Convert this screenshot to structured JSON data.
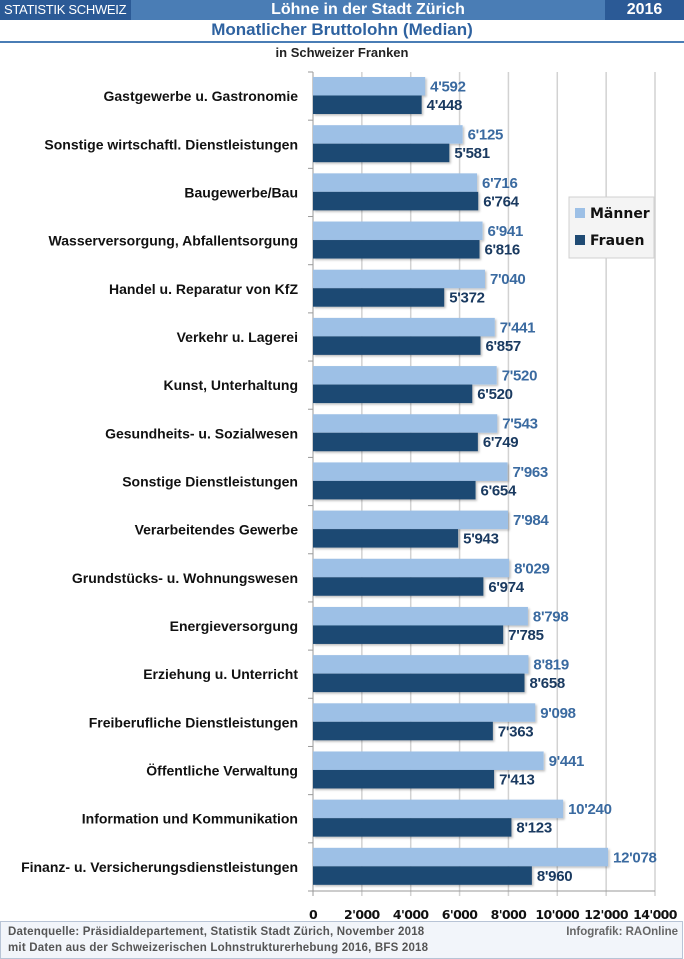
{
  "header": {
    "brand": "STATISTIK SCHWEIZ",
    "title": "Löhne in der Stadt Zürich",
    "year": "2016"
  },
  "colors": {
    "header_bg": "#4a7db5",
    "header_dark": "#2b5a96",
    "maenner": "#9dc0e6",
    "frauen": "#1f4a73",
    "maenner_label": "#3a6aa0",
    "frauen_label": "#1a3a60"
  },
  "chart_data": {
    "type": "bar",
    "orientation": "horizontal",
    "title": "Monatlicher Bruttolohn (Median)",
    "subtitle": "in Schweizer Franken",
    "xlabel": "",
    "ylabel": "",
    "xlim": [
      0,
      14000
    ],
    "x_ticks": [
      "0",
      "2'000",
      "4'000",
      "6'000",
      "8'000",
      "10'000",
      "12'000",
      "14'000"
    ],
    "x_tick_values": [
      0,
      2000,
      4000,
      6000,
      8000,
      10000,
      12000,
      14000
    ],
    "grid": true,
    "legend_position": "right",
    "categories": [
      "Gastgewerbe u. Gastronomie",
      "Sonstige wirtschaftl. Dienstleistungen",
      "Baugewerbe/Bau",
      "Wasserversorgung,  Abfallentsorgung",
      "Handel u. Reparatur von KfZ",
      "Verkehr  u.  Lagerei",
      "Kunst,  Unterhaltung",
      "Gesundheits- u.  Sozialwesen",
      "Sonstige Dienstleistungen",
      "Verarbeitendes Gewerbe",
      "Grundstücks- u.  Wohnungswesen",
      "Energieversorgung",
      "Erziehung u. Unterricht",
      "Freiberufliche Dienstleistungen",
      "Öffentliche Verwaltung",
      "Information und Kommunikation",
      "Finanz- u.  Versicherungsdienstleistungen"
    ],
    "series": [
      {
        "name": "Männer",
        "values": [
          4592,
          6125,
          6716,
          6941,
          7040,
          7441,
          7520,
          7543,
          7963,
          7984,
          8029,
          8798,
          8819,
          9098,
          9441,
          10240,
          12078
        ],
        "labels": [
          "4'592",
          "6'125",
          "6'716",
          "6'941",
          "7'040",
          "7'441",
          "7'520",
          "7'543",
          "7'963",
          "7'984",
          "8'029",
          "8'798",
          "8'819",
          "9'098",
          "9'441",
          "10'240",
          "12'078"
        ]
      },
      {
        "name": "Frauen",
        "values": [
          4448,
          5581,
          6764,
          6816,
          5372,
          6857,
          6520,
          6749,
          6654,
          5943,
          6974,
          7785,
          8658,
          7363,
          7413,
          8123,
          8960
        ],
        "labels": [
          "4'448",
          "5'581",
          "6'764",
          "6'816",
          "5'372",
          "6'857",
          "6'520",
          "6'749",
          "6'654",
          "5'943",
          "6'974",
          "7'785",
          "8'658",
          "7'363",
          "7'413",
          "8'123",
          "8'960"
        ]
      }
    ]
  },
  "footer": {
    "source_line1": "Datenquelle: Präsidialdepartement, Statistik Stadt Zürich, November 2018",
    "source_line2": "mit Daten aus der Schweizerischen Lohnstrukturerhebung 2016, BFS 2018",
    "credit": "Infografik: RAOnline"
  }
}
